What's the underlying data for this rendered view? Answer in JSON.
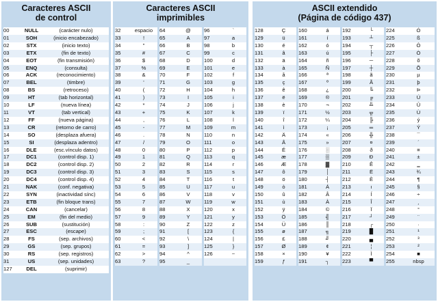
{
  "control": {
    "title_line1": "Caracteres ASCII",
    "title_line2": "de control",
    "rows": [
      [
        "00",
        "NULL",
        "(carácter nulo)"
      ],
      [
        "01",
        "SOH",
        "(inicio encabezado)"
      ],
      [
        "02",
        "STX",
        "(inicio texto)"
      ],
      [
        "03",
        "ETX",
        "(fin de texto)"
      ],
      [
        "04",
        "EOT",
        "(fin transmisión)"
      ],
      [
        "05",
        "ENQ",
        "(consulta)"
      ],
      [
        "06",
        "ACK",
        "(reconocimiento)"
      ],
      [
        "07",
        "BEL",
        "(timbre)"
      ],
      [
        "08",
        "BS",
        "(retroceso)"
      ],
      [
        "09",
        "HT",
        "(tab horizontal)"
      ],
      [
        "10",
        "LF",
        "(nueva línea)"
      ],
      [
        "11",
        "VT",
        "(tab vertical)"
      ],
      [
        "12",
        "FF",
        "(nueva página)"
      ],
      [
        "13",
        "CR",
        "(retorno de carro)"
      ],
      [
        "14",
        "SO",
        "(desplaza afuera)"
      ],
      [
        "15",
        "SI",
        "(desplaza adentro)"
      ],
      [
        "16",
        "DLE",
        "(esc.vínculo datos)"
      ],
      [
        "17",
        "DC1",
        "(control disp. 1)"
      ],
      [
        "18",
        "DC2",
        "(control disp. 2)"
      ],
      [
        "19",
        "DC3",
        "(control disp. 3)"
      ],
      [
        "20",
        "DC4",
        "(control disp. 4)"
      ],
      [
        "21",
        "NAK",
        "(conf. negativa)"
      ],
      [
        "22",
        "SYN",
        "(inactividad sínc)"
      ],
      [
        "23",
        "ETB",
        "(fin bloque trans)"
      ],
      [
        "24",
        "CAN",
        "(cancelar)"
      ],
      [
        "25",
        "EM",
        "(fin del medio)"
      ],
      [
        "26",
        "SUB",
        "(sustitución)"
      ],
      [
        "27",
        "ESC",
        "(escape)"
      ],
      [
        "28",
        "FS",
        "(sep. archivos)"
      ],
      [
        "29",
        "GS",
        "(sep. grupos)"
      ],
      [
        "30",
        "RS",
        "(sep. registros)"
      ],
      [
        "31",
        "US",
        "(sep. unidades)"
      ],
      [
        "127",
        "DEL",
        "(suprimir)"
      ]
    ]
  },
  "printable": {
    "title_line1": "Caracteres ASCII",
    "title_line2": "imprimibles",
    "rows": [
      [
        "32",
        "espacio",
        "64",
        "@",
        "96",
        "`"
      ],
      [
        "33",
        "!",
        "65",
        "A",
        "97",
        "a"
      ],
      [
        "34",
        "\"",
        "66",
        "B",
        "98",
        "b"
      ],
      [
        "35",
        "#",
        "67",
        "C",
        "99",
        "c"
      ],
      [
        "36",
        "$",
        "68",
        "D",
        "100",
        "d"
      ],
      [
        "37",
        "%",
        "69",
        "E",
        "101",
        "e"
      ],
      [
        "38",
        "&",
        "70",
        "F",
        "102",
        "f"
      ],
      [
        "39",
        "'",
        "71",
        "G",
        "103",
        "g"
      ],
      [
        "40",
        "(",
        "72",
        "H",
        "104",
        "h"
      ],
      [
        "41",
        ")",
        "73",
        "I",
        "105",
        "i"
      ],
      [
        "42",
        "*",
        "74",
        "J",
        "106",
        "j"
      ],
      [
        "43",
        "+",
        "75",
        "K",
        "107",
        "k"
      ],
      [
        "44",
        ",",
        "76",
        "L",
        "108",
        "l"
      ],
      [
        "45",
        "-",
        "77",
        "M",
        "109",
        "m"
      ],
      [
        "46",
        ".",
        "78",
        "N",
        "110",
        "n"
      ],
      [
        "47",
        "/",
        "79",
        "O",
        "111",
        "o"
      ],
      [
        "48",
        "0",
        "80",
        "P",
        "112",
        "p"
      ],
      [
        "49",
        "1",
        "81",
        "Q",
        "113",
        "q"
      ],
      [
        "50",
        "2",
        "82",
        "R",
        "114",
        "r"
      ],
      [
        "51",
        "3",
        "83",
        "S",
        "115",
        "s"
      ],
      [
        "52",
        "4",
        "84",
        "T",
        "116",
        "t"
      ],
      [
        "53",
        "5",
        "85",
        "U",
        "117",
        "u"
      ],
      [
        "54",
        "6",
        "86",
        "V",
        "118",
        "v"
      ],
      [
        "55",
        "7",
        "87",
        "W",
        "119",
        "w"
      ],
      [
        "56",
        "8",
        "88",
        "X",
        "120",
        "x"
      ],
      [
        "57",
        "9",
        "89",
        "Y",
        "121",
        "y"
      ],
      [
        "58",
        ":",
        "90",
        "Z",
        "122",
        "z"
      ],
      [
        "59",
        ";",
        "91",
        "[",
        "123",
        "{"
      ],
      [
        "60",
        "<",
        "92",
        "\\",
        "124",
        "|"
      ],
      [
        "61",
        "=",
        "93",
        "]",
        "125",
        "}"
      ],
      [
        "62",
        ">",
        "94",
        "^",
        "126",
        "~"
      ],
      [
        "63",
        "?",
        "95",
        "_",
        "",
        ""
      ]
    ]
  },
  "extended": {
    "title_line1": "ASCII extendido",
    "title_line2": "(Página de código 437)",
    "rows": [
      [
        "128",
        "Ç",
        "160",
        "á",
        "192",
        "└",
        "224",
        "Ó"
      ],
      [
        "129",
        "ü",
        "161",
        "í",
        "193",
        "┴",
        "225",
        "ß"
      ],
      [
        "130",
        "é",
        "162",
        "ó",
        "194",
        "┬",
        "226",
        "Ô"
      ],
      [
        "131",
        "â",
        "163",
        "ú",
        "195",
        "├",
        "227",
        "Ò"
      ],
      [
        "132",
        "ä",
        "164",
        "ñ",
        "196",
        "─",
        "228",
        "õ"
      ],
      [
        "133",
        "à",
        "165",
        "Ñ",
        "197",
        "┼",
        "229",
        "Õ"
      ],
      [
        "134",
        "å",
        "166",
        "ª",
        "198",
        "ã",
        "230",
        "µ"
      ],
      [
        "135",
        "ç",
        "167",
        "º",
        "199",
        "Ã",
        "231",
        "þ"
      ],
      [
        "136",
        "ê",
        "168",
        "¿",
        "200",
        "╚",
        "232",
        "Þ"
      ],
      [
        "137",
        "ë",
        "169",
        "®",
        "201",
        "╔",
        "233",
        "Ú"
      ],
      [
        "138",
        "è",
        "170",
        "¬",
        "202",
        "╩",
        "234",
        "Û"
      ],
      [
        "139",
        "ï",
        "171",
        "½",
        "203",
        "╦",
        "235",
        "Ù"
      ],
      [
        "140",
        "î",
        "172",
        "¼",
        "204",
        "╠",
        "236",
        "ý"
      ],
      [
        "141",
        "ì",
        "173",
        "¡",
        "205",
        "═",
        "237",
        "Ý"
      ],
      [
        "142",
        "Ä",
        "174",
        "«",
        "206",
        "╬",
        "238",
        "¯"
      ],
      [
        "143",
        "Å",
        "175",
        "»",
        "207",
        "¤",
        "239",
        "´"
      ],
      [
        "144",
        "É",
        "176",
        "░",
        "208",
        "ð",
        "240",
        "≡"
      ],
      [
        "145",
        "æ",
        "177",
        "▒",
        "209",
        "Ð",
        "241",
        "±"
      ],
      [
        "146",
        "Æ",
        "178",
        "▓",
        "210",
        "Ê",
        "242",
        "‗"
      ],
      [
        "147",
        "ô",
        "179",
        "│",
        "211",
        "Ë",
        "243",
        "¾"
      ],
      [
        "148",
        "ö",
        "180",
        "┤",
        "212",
        "È",
        "244",
        "¶"
      ],
      [
        "149",
        "ò",
        "181",
        "Á",
        "213",
        "ı",
        "245",
        "§"
      ],
      [
        "150",
        "û",
        "182",
        "Â",
        "214",
        "Í",
        "246",
        "÷"
      ],
      [
        "151",
        "ù",
        "183",
        "À",
        "215",
        "Î",
        "247",
        "¸"
      ],
      [
        "152",
        "ÿ",
        "184",
        "©",
        "216",
        "Ï",
        "248",
        "°"
      ],
      [
        "153",
        "Ö",
        "185",
        "╣",
        "217",
        "┘",
        "249",
        "¨"
      ],
      [
        "154",
        "Ü",
        "186",
        "║",
        "218",
        "┌",
        "250",
        "·"
      ],
      [
        "155",
        "ø",
        "187",
        "╗",
        "219",
        "█",
        "251",
        "¹"
      ],
      [
        "156",
        "£",
        "188",
        "╝",
        "220",
        "▄",
        "252",
        "³"
      ],
      [
        "157",
        "Ø",
        "189",
        "¢",
        "221",
        "¦",
        "253",
        "²"
      ],
      [
        "158",
        "×",
        "190",
        "¥",
        "222",
        "Ì",
        "254",
        "■"
      ],
      [
        "159",
        "ƒ",
        "191",
        "┐",
        "223",
        "▀",
        "255",
        "nbsp"
      ]
    ]
  }
}
